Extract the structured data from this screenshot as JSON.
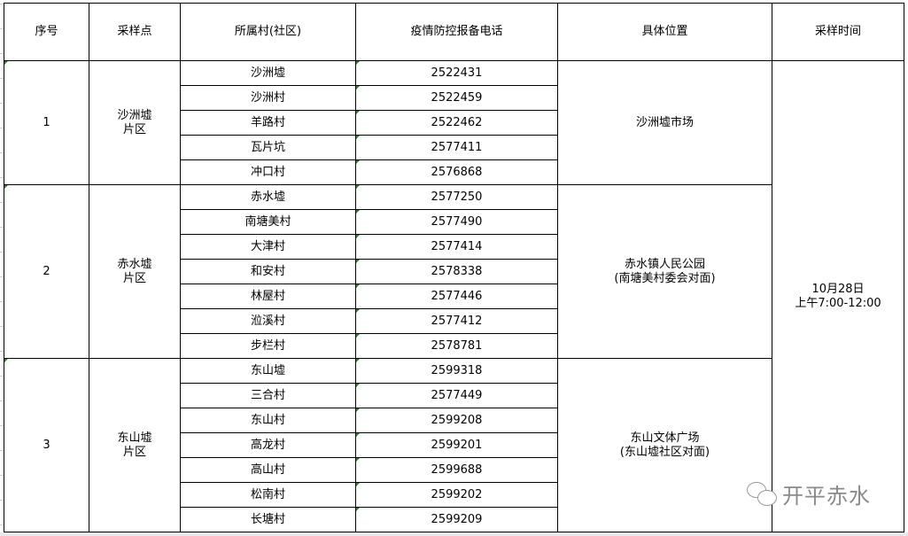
{
  "headers": [
    "序号",
    "采样点",
    "所属村(社区)",
    "疫情防控报备电话",
    "具体位置",
    "采样时间"
  ],
  "time": {
    "line1": "10月28日",
    "line2": "上午7:00-12:00"
  },
  "groups": [
    {
      "no": "1",
      "site_line1": "沙洲墟",
      "site_line2": "片区",
      "location_line1": "沙洲墟市场",
      "location_line2": "",
      "villages": [
        {
          "name": "沙洲墟",
          "phone": "2522431"
        },
        {
          "name": "沙洲村",
          "phone": "2522459"
        },
        {
          "name": "羊路村",
          "phone": "2522462"
        },
        {
          "name": "瓦片坑",
          "phone": "2577411"
        },
        {
          "name": "冲口村",
          "phone": "2576868"
        }
      ]
    },
    {
      "no": "2",
      "site_line1": "赤水墟",
      "site_line2": "片区",
      "location_line1": "赤水镇人民公园",
      "location_line2": "(南塘美村委会对面)",
      "villages": [
        {
          "name": "赤水墟",
          "phone": "2577250"
        },
        {
          "name": "南塘美村",
          "phone": "2577490"
        },
        {
          "name": "大津村",
          "phone": "2577414"
        },
        {
          "name": "和安村",
          "phone": "2578338"
        },
        {
          "name": "林屋村",
          "phone": "2577446"
        },
        {
          "name": "涖溪村",
          "phone": "2577412"
        },
        {
          "name": "步栏村",
          "phone": "2578781"
        }
      ]
    },
    {
      "no": "3",
      "site_line1": "东山墟",
      "site_line2": "片区",
      "location_line1": "东山文体广场",
      "location_line2": "(东山墟社区对面)",
      "villages": [
        {
          "name": "东山墟",
          "phone": "2599318"
        },
        {
          "name": "三合村",
          "phone": "2577449"
        },
        {
          "name": "东山村",
          "phone": "2599208"
        },
        {
          "name": "高龙村",
          "phone": "2599201"
        },
        {
          "name": "高山村",
          "phone": "2599688"
        },
        {
          "name": "松南村",
          "phone": "2599202"
        },
        {
          "name": "长塘村",
          "phone": "2599209"
        }
      ]
    }
  ],
  "watermark": {
    "text": "开平赤水",
    "icon": "wechat-icon"
  }
}
